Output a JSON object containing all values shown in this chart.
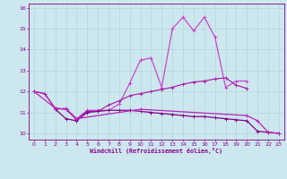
{
  "xlabel": "Windchill (Refroidissement éolien,°C)",
  "bg_color": "#cce8ee",
  "grid_color": "#b0d8d8",
  "line_color": "#880088",
  "ylim": [
    9.7,
    16.2
  ],
  "xlim": [
    -0.5,
    23.5
  ],
  "yticks": [
    10,
    11,
    12,
    13,
    14,
    15,
    16
  ],
  "xticks": [
    0,
    1,
    2,
    3,
    4,
    5,
    6,
    7,
    8,
    9,
    10,
    11,
    12,
    13,
    14,
    15,
    16,
    17,
    18,
    19,
    20,
    21,
    22,
    23
  ],
  "series": [
    {
      "x": [
        0,
        1,
        2,
        3,
        4,
        5,
        6,
        7,
        8,
        9,
        10,
        11,
        12,
        13,
        14,
        15,
        16,
        17,
        18,
        19,
        20
      ],
      "y": [
        12.0,
        11.9,
        11.15,
        11.2,
        10.7,
        11.1,
        11.1,
        11.1,
        11.4,
        12.4,
        13.5,
        13.6,
        12.2,
        15.0,
        15.55,
        14.9,
        15.55,
        14.6,
        12.2,
        12.5,
        12.5
      ],
      "color": "#cc44cc",
      "lw": 0.9
    },
    {
      "x": [
        0,
        1,
        2,
        3,
        4,
        5,
        6,
        7,
        8,
        9,
        10,
        11,
        12,
        13,
        14,
        15,
        16,
        17,
        18,
        19,
        20
      ],
      "y": [
        12.0,
        11.9,
        11.2,
        11.15,
        10.65,
        11.05,
        11.05,
        11.35,
        11.55,
        11.8,
        11.9,
        12.0,
        12.1,
        12.2,
        12.35,
        12.45,
        12.5,
        12.6,
        12.65,
        12.3,
        12.15
      ],
      "color": "#aa22aa",
      "lw": 0.9
    },
    {
      "x": [
        2,
        3,
        4,
        5,
        6,
        7,
        8,
        9,
        10,
        11,
        12,
        13,
        14,
        15,
        16,
        17,
        18,
        19,
        20,
        21,
        22,
        23
      ],
      "y": [
        11.15,
        10.7,
        10.6,
        11.0,
        11.05,
        11.1,
        11.1,
        11.1,
        11.05,
        11.0,
        10.95,
        10.9,
        10.85,
        10.8,
        10.8,
        10.75,
        10.7,
        10.65,
        10.6,
        10.1,
        10.05,
        10.0
      ],
      "color": "#880088",
      "lw": 0.9
    },
    {
      "x": [
        0,
        2,
        3,
        4,
        10,
        20,
        21,
        22,
        23
      ],
      "y": [
        12.0,
        11.2,
        11.15,
        10.7,
        11.15,
        10.85,
        10.6,
        10.05,
        10.0
      ],
      "color": "#bb22bb",
      "lw": 0.9
    }
  ]
}
